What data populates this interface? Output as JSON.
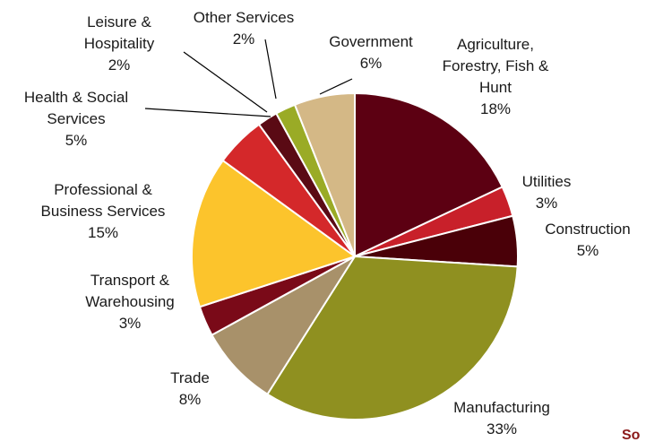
{
  "chart_data": {
    "type": "pie",
    "title": "",
    "unit": "%",
    "slices": [
      {
        "label": "Agriculture, Forestry, Fish & Hunt",
        "value": 18,
        "value_label": "18%",
        "color": "#5c0012"
      },
      {
        "label": "Utilities",
        "value": 3,
        "value_label": "3%",
        "color": "#c8202a"
      },
      {
        "label": "Construction",
        "value": 5,
        "value_label": "5%",
        "color": "#4a0008"
      },
      {
        "label": "Manufacturing",
        "value": 33,
        "value_label": "33%",
        "color": "#8f9020"
      },
      {
        "label": "Trade",
        "value": 8,
        "value_label": "8%",
        "color": "#a8916a"
      },
      {
        "label": "Transport & Warehousing",
        "value": 3,
        "value_label": "3%",
        "color": "#7a0a18"
      },
      {
        "label": "Professional & Business Services",
        "value": 15,
        "value_label": "15%",
        "color": "#fcc42c"
      },
      {
        "label": "Health & Social Services",
        "value": 5,
        "value_label": "5%",
        "color": "#d4282a"
      },
      {
        "label": "Leisure & Hospitality",
        "value": 2,
        "value_label": "2%",
        "color": "#5a0a14"
      },
      {
        "label": "Other Services",
        "value": 2,
        "value_label": "2%",
        "color": "#9aab26"
      },
      {
        "label": "Government",
        "value": 6,
        "value_label": "6%",
        "color": "#d4b886"
      }
    ]
  },
  "source_fragment": "So"
}
